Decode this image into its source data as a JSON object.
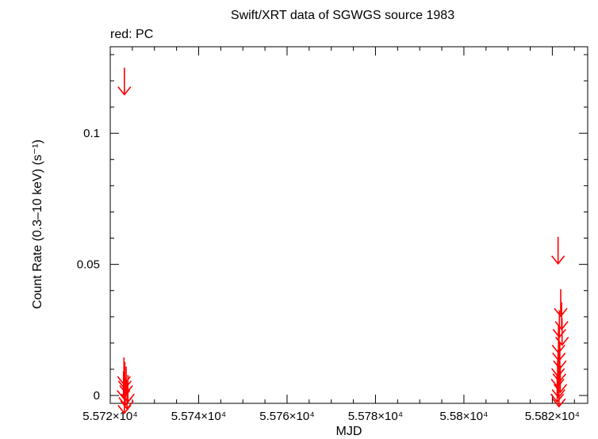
{
  "chart_data": {
    "type": "scatter",
    "title": "Swift/XRT data of SGWGS source 1983",
    "subtitle": "red: PC",
    "xlabel": "MJD",
    "ylabel": "Count Rate (0.3–10 keV) (s⁻¹)",
    "xlim": [
      55720,
      55828
    ],
    "ylim": [
      -0.003,
      0.133
    ],
    "x_ticks": [
      {
        "value": 55720,
        "label": "5.572×10⁴"
      },
      {
        "value": 55740,
        "label": "5.574×10⁴"
      },
      {
        "value": 55760,
        "label": "5.576×10⁴"
      },
      {
        "value": 55780,
        "label": "5.578×10⁴"
      },
      {
        "value": 55800,
        "label": "5.58×10⁴"
      },
      {
        "value": 55820,
        "label": "5.582×10⁴"
      }
    ],
    "y_ticks": [
      {
        "value": 0,
        "label": "0"
      },
      {
        "value": 0.05,
        "label": "0.05"
      },
      {
        "value": 0.1,
        "label": "0.1"
      }
    ],
    "series": [
      {
        "name": "PC",
        "color": "#ff0000",
        "marker": "upper-limit-arrow",
        "points": [
          {
            "x": 55723.2,
            "y": 0.125
          },
          {
            "x": 55723.1,
            "y": 0.0145
          },
          {
            "x": 55723.3,
            "y": 0.0128
          },
          {
            "x": 55723.6,
            "y": 0.011
          },
          {
            "x": 55723.0,
            "y": 0.0092
          },
          {
            "x": 55724.0,
            "y": 0.0078
          },
          {
            "x": 55723.4,
            "y": 0.0065
          },
          {
            "x": 55723.8,
            "y": 0.0052
          },
          {
            "x": 55723.2,
            "y": 0.0035
          },
          {
            "x": 55821.3,
            "y": 0.0605
          },
          {
            "x": 55821.9,
            "y": 0.0405
          },
          {
            "x": 55822.1,
            "y": 0.0355
          },
          {
            "x": 55821.6,
            "y": 0.0325
          },
          {
            "x": 55822.2,
            "y": 0.0295
          },
          {
            "x": 55821.4,
            "y": 0.0265
          },
          {
            "x": 55821.5,
            "y": 0.0235
          },
          {
            "x": 55821.7,
            "y": 0.0205
          },
          {
            "x": 55821.3,
            "y": 0.0175
          },
          {
            "x": 55821.6,
            "y": 0.0155
          },
          {
            "x": 55821.2,
            "y": 0.0135
          },
          {
            "x": 55821.8,
            "y": 0.0115
          },
          {
            "x": 55821.4,
            "y": 0.0095
          },
          {
            "x": 55821.1,
            "y": 0.0078
          },
          {
            "x": 55821.5,
            "y": 0.006
          }
        ]
      }
    ]
  }
}
